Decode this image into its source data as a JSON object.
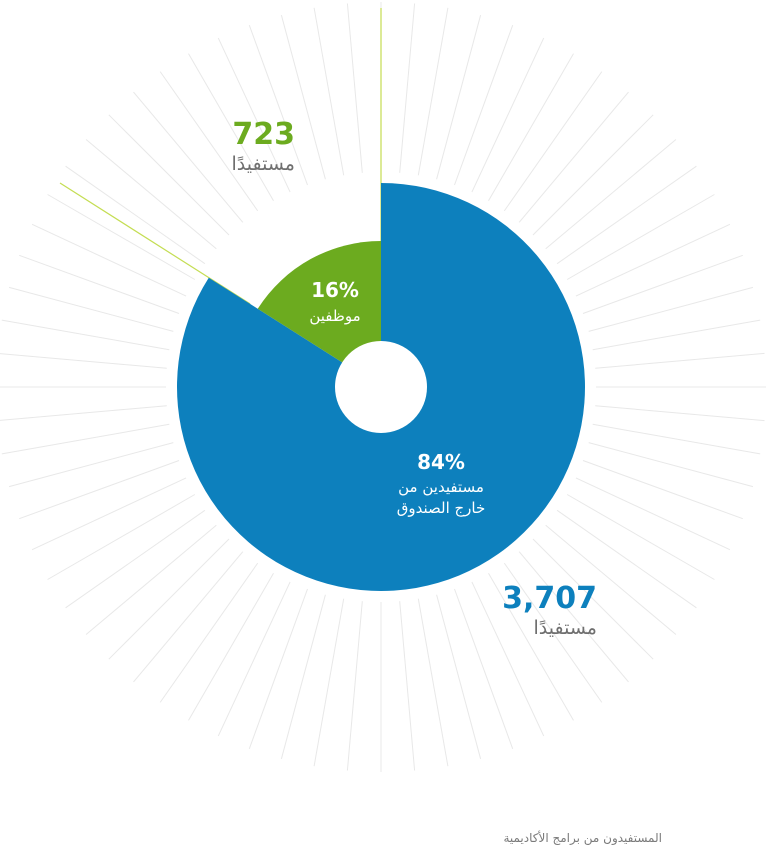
{
  "colors": {
    "outside": "#0d80bd",
    "staff": "#6cab1f",
    "leader": "#c4dd52",
    "rays": "#e8e8e8"
  },
  "chart_data": {
    "type": "pie",
    "donut": true,
    "slices": [
      {
        "label_line1": "مستفيدين من",
        "label_line2": "خارج الصندوق",
        "percent": 84,
        "count_label": "3,707",
        "unit": "مستفيدًا",
        "value": 3707
      },
      {
        "label_line1": "موظفين",
        "label_line2": "",
        "percent": 16,
        "count_label": "723",
        "unit": "مستفيدًا",
        "value": 723
      }
    ],
    "footnote": "المستفيدون من برامج الأكاديمية"
  }
}
